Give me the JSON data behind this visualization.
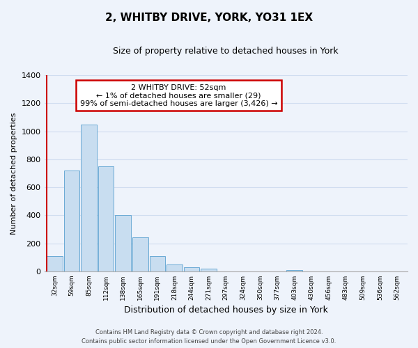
{
  "title": "2, WHITBY DRIVE, YORK, YO31 1EX",
  "subtitle": "Size of property relative to detached houses in York",
  "xlabel": "Distribution of detached houses by size in York",
  "ylabel": "Number of detached properties",
  "bar_labels": [
    "32sqm",
    "59sqm",
    "85sqm",
    "112sqm",
    "138sqm",
    "165sqm",
    "191sqm",
    "218sqm",
    "244sqm",
    "271sqm",
    "297sqm",
    "324sqm",
    "350sqm",
    "377sqm",
    "403sqm",
    "430sqm",
    "456sqm",
    "483sqm",
    "509sqm",
    "536sqm",
    "562sqm"
  ],
  "bar_values": [
    108,
    720,
    1050,
    750,
    400,
    245,
    110,
    50,
    28,
    22,
    0,
    0,
    0,
    0,
    10,
    0,
    0,
    0,
    0,
    0,
    0
  ],
  "bar_color": "#c8ddf0",
  "bar_edge_color": "#6aaad4",
  "ylim": [
    0,
    1400
  ],
  "yticks": [
    0,
    200,
    400,
    600,
    800,
    1000,
    1200,
    1400
  ],
  "annotation_line1": "2 WHITBY DRIVE: 52sqm",
  "annotation_line2": "← 1% of detached houses are smaller (29)",
  "annotation_line3": "99% of semi-detached houses are larger (3,426) →",
  "footer_line1": "Contains HM Land Registry data © Crown copyright and database right 2024.",
  "footer_line2": "Contains public sector information licensed under the Open Government Licence v3.0.",
  "bg_color": "#eef3fb",
  "grid_color": "#d0ddf0",
  "annotation_box_facecolor": "#ffffff",
  "annotation_box_edgecolor": "#cc0000",
  "red_line_color": "#cc0000",
  "title_fontsize": 11,
  "subtitle_fontsize": 9
}
